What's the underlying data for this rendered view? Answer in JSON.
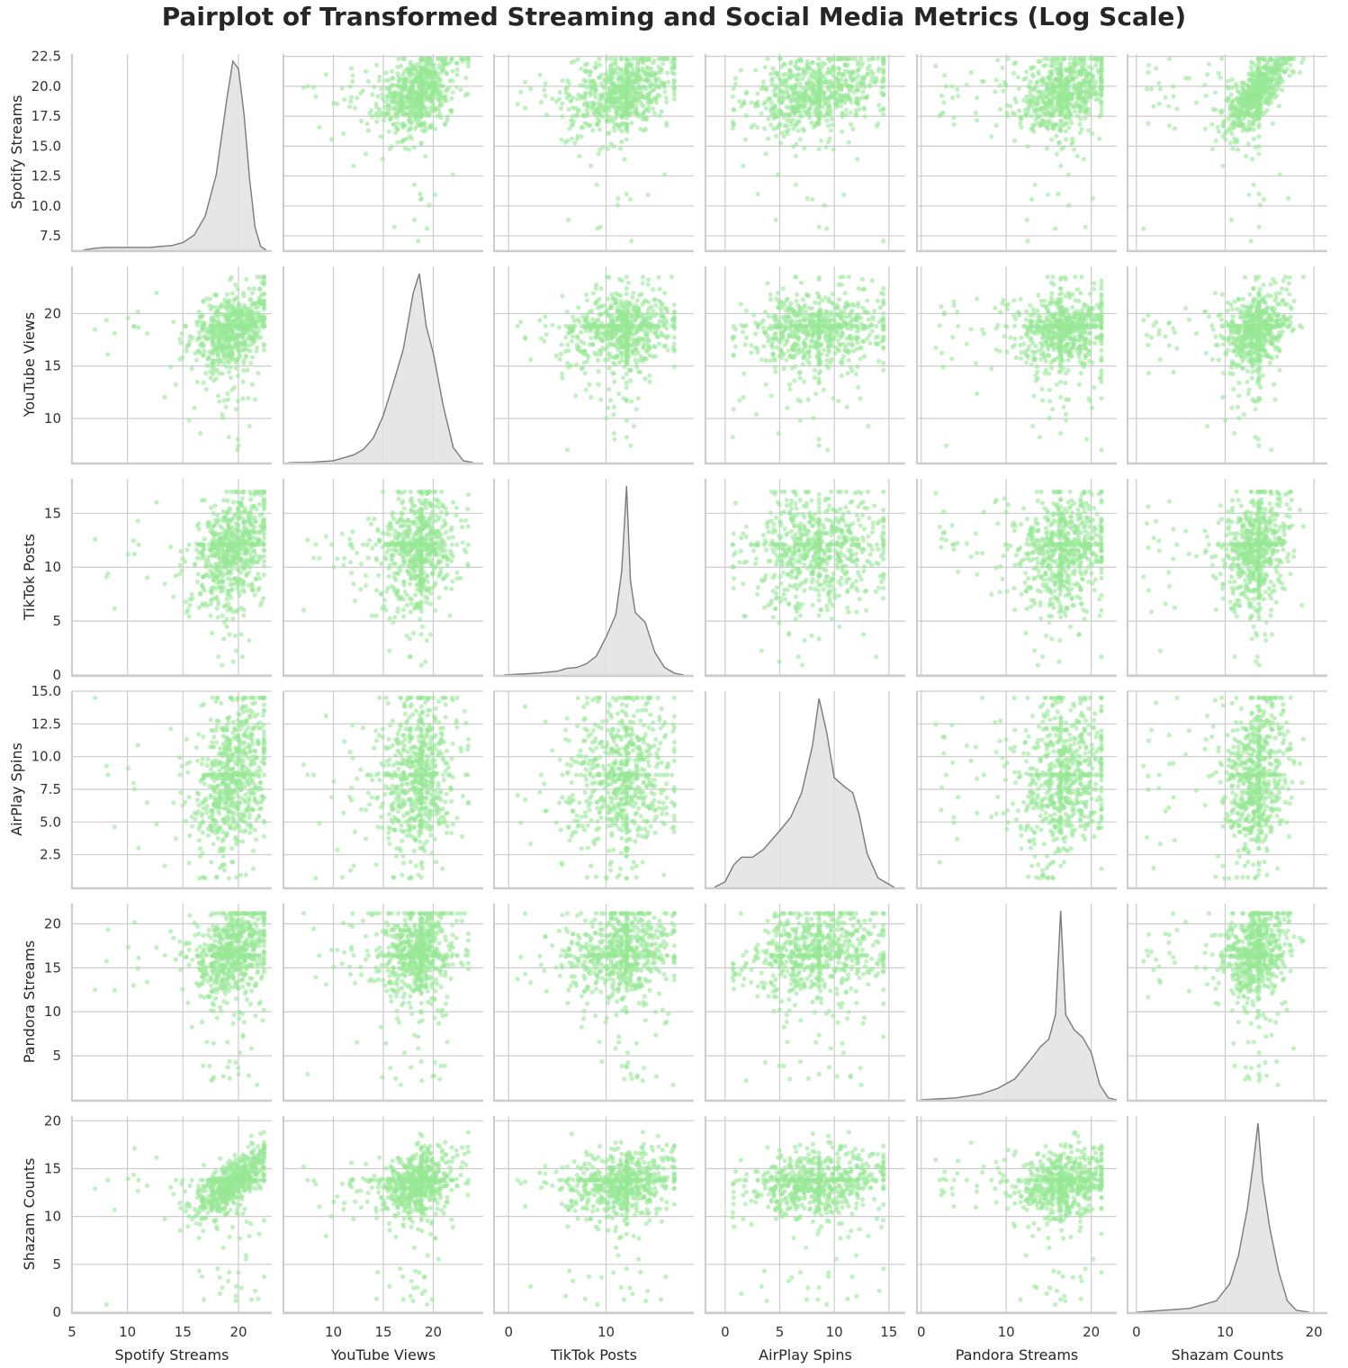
{
  "chart_data": {
    "type": "scatter",
    "title": "Pairplot of Transformed Streaming and Social Media Metrics (Log Scale)",
    "kind": "pairplot",
    "diag_kind": "kde",
    "grid": true,
    "colors": {
      "points": "#98e896",
      "kde_fill": "#e3e3e3",
      "kde_line": "#7a7a7a",
      "grid": "#cccccc",
      "axis": "#cccccc"
    },
    "variables": [
      {
        "name": "Spotify Streams",
        "range": [
          5,
          23
        ],
        "ylim": [
          6.3,
          22.7
        ],
        "xticks": [
          5,
          10,
          15,
          20
        ],
        "yticks": [
          7.5,
          10.0,
          12.5,
          15.0,
          17.5,
          20.0,
          22.5
        ],
        "ytick_labels": [
          "7.5",
          "10.0",
          "12.5",
          "15.0",
          "17.5",
          "20.0",
          "22.5"
        ],
        "center": 19.5,
        "spread": 1.7,
        "min": 7,
        "max": 22.3,
        "fill_value": 19.3,
        "kde": [
          [
            6,
            0
          ],
          [
            7,
            0.01
          ],
          [
            8,
            0.015
          ],
          [
            9,
            0.015
          ],
          [
            10,
            0.015
          ],
          [
            11,
            0.015
          ],
          [
            12,
            0.015
          ],
          [
            13,
            0.02
          ],
          [
            14,
            0.025
          ],
          [
            15,
            0.04
          ],
          [
            16,
            0.08
          ],
          [
            17,
            0.18
          ],
          [
            18,
            0.4
          ],
          [
            19,
            0.82
          ],
          [
            19.5,
            1.0
          ],
          [
            20,
            0.96
          ],
          [
            20.5,
            0.72
          ],
          [
            21,
            0.38
          ],
          [
            21.5,
            0.12
          ],
          [
            22,
            0.02
          ],
          [
            22.5,
            0
          ]
        ]
      },
      {
        "name": "YouTube Views",
        "range": [
          5,
          25
        ],
        "ylim": [
          5.8,
          24.5
        ],
        "xticks": [
          10,
          15,
          20
        ],
        "yticks": [
          10,
          15,
          20
        ],
        "ytick_labels": [
          "10",
          "15",
          "20"
        ],
        "center": 18.4,
        "spread": 1.9,
        "min": 7,
        "max": 23.5,
        "fill_value": 18.8,
        "kde": [
          [
            5.5,
            0
          ],
          [
            8,
            0.003
          ],
          [
            10,
            0.01
          ],
          [
            12,
            0.04
          ],
          [
            13,
            0.07
          ],
          [
            14,
            0.13
          ],
          [
            15,
            0.25
          ],
          [
            16,
            0.42
          ],
          [
            17,
            0.6
          ],
          [
            18,
            0.9
          ],
          [
            18.6,
            1.0
          ],
          [
            19.3,
            0.72
          ],
          [
            20,
            0.58
          ],
          [
            21,
            0.3
          ],
          [
            22,
            0.08
          ],
          [
            23,
            0.01
          ],
          [
            24,
            0
          ]
        ]
      },
      {
        "name": "TikTok Posts",
        "range": [
          -1.5,
          19
        ],
        "ylim": [
          0,
          18.2
        ],
        "xticks": [
          0,
          10
        ],
        "yticks": [
          0,
          5,
          10,
          15
        ],
        "ytick_labels": [
          "0",
          "5",
          "10",
          "15"
        ],
        "center": 12.0,
        "spread": 2.7,
        "min": 0.8,
        "max": 17,
        "fill_value": 12.1,
        "kde": [
          [
            -0.5,
            0
          ],
          [
            3,
            0.01
          ],
          [
            5,
            0.02
          ],
          [
            6,
            0.035
          ],
          [
            7,
            0.04
          ],
          [
            8,
            0.06
          ],
          [
            9,
            0.1
          ],
          [
            10,
            0.2
          ],
          [
            11,
            0.32
          ],
          [
            11.6,
            0.55
          ],
          [
            12.1,
            1.0
          ],
          [
            12.5,
            0.5
          ],
          [
            13,
            0.33
          ],
          [
            14,
            0.28
          ],
          [
            15,
            0.12
          ],
          [
            16,
            0.04
          ],
          [
            17,
            0.01
          ],
          [
            18,
            0
          ]
        ]
      },
      {
        "name": "AirPlay Spins",
        "range": [
          -1.8,
          16.5
        ],
        "ylim": [
          0,
          15
        ],
        "xticks": [
          0,
          5,
          10,
          15
        ],
        "yticks": [
          2.5,
          5.0,
          7.5,
          10.0,
          12.5,
          15.0
        ],
        "ytick_labels": [
          "2.5",
          "5.0",
          "7.5",
          "10.0",
          "12.5",
          "15.0"
        ],
        "center": 8.5,
        "spread": 3.2,
        "min": 0.7,
        "max": 14.5,
        "fill_value": 8.6,
        "kde": [
          [
            -1,
            0
          ],
          [
            0,
            0.03
          ],
          [
            0.8,
            0.12
          ],
          [
            1.5,
            0.16
          ],
          [
            2.5,
            0.16
          ],
          [
            3.5,
            0.2
          ],
          [
            5,
            0.3
          ],
          [
            6,
            0.37
          ],
          [
            7,
            0.5
          ],
          [
            8,
            0.75
          ],
          [
            8.6,
            1.0
          ],
          [
            9.3,
            0.82
          ],
          [
            10,
            0.58
          ],
          [
            11,
            0.53
          ],
          [
            11.7,
            0.5
          ],
          [
            12.3,
            0.38
          ],
          [
            13,
            0.18
          ],
          [
            14,
            0.05
          ],
          [
            15.5,
            0
          ]
        ]
      },
      {
        "name": "Pandora Streams",
        "range": [
          -0.5,
          23
        ],
        "ylim": [
          0,
          22.3
        ],
        "xticks": [
          0,
          10,
          20
        ],
        "yticks": [
          5,
          10,
          15,
          20
        ],
        "ytick_labels": [
          "5",
          "10",
          "15",
          "20"
        ],
        "center": 16.8,
        "spread": 2.6,
        "min": 1,
        "max": 21.2,
        "fill_value": 16.4,
        "kde": [
          [
            0,
            0
          ],
          [
            4,
            0.01
          ],
          [
            7,
            0.03
          ],
          [
            9,
            0.06
          ],
          [
            11,
            0.11
          ],
          [
            13,
            0.22
          ],
          [
            14,
            0.28
          ],
          [
            15,
            0.32
          ],
          [
            15.8,
            0.45
          ],
          [
            16.4,
            1.0
          ],
          [
            17,
            0.45
          ],
          [
            18,
            0.37
          ],
          [
            19,
            0.33
          ],
          [
            20,
            0.25
          ],
          [
            21,
            0.08
          ],
          [
            22,
            0.01
          ],
          [
            23,
            0
          ]
        ]
      },
      {
        "name": "Shazam Counts",
        "range": [
          -1,
          21.5
        ],
        "ylim": [
          0,
          20.5
        ],
        "xticks": [
          0,
          10,
          20
        ],
        "yticks": [
          0,
          5,
          10,
          15,
          20
        ],
        "ytick_labels": [
          "0",
          "5",
          "10",
          "15",
          "20"
        ],
        "center": 13.5,
        "spread": 1.7,
        "min": 0.8,
        "max": 19,
        "fill_value": 13.8,
        "kde": [
          [
            0,
            0
          ],
          [
            3,
            0.01
          ],
          [
            6,
            0.02
          ],
          [
            9,
            0.06
          ],
          [
            10.5,
            0.15
          ],
          [
            11.5,
            0.3
          ],
          [
            12.5,
            0.55
          ],
          [
            13.2,
            0.8
          ],
          [
            13.7,
            1.0
          ],
          [
            14.2,
            0.7
          ],
          [
            15,
            0.45
          ],
          [
            16,
            0.22
          ],
          [
            17,
            0.06
          ],
          [
            18,
            0.01
          ],
          [
            19.5,
            0
          ]
        ]
      }
    ]
  }
}
